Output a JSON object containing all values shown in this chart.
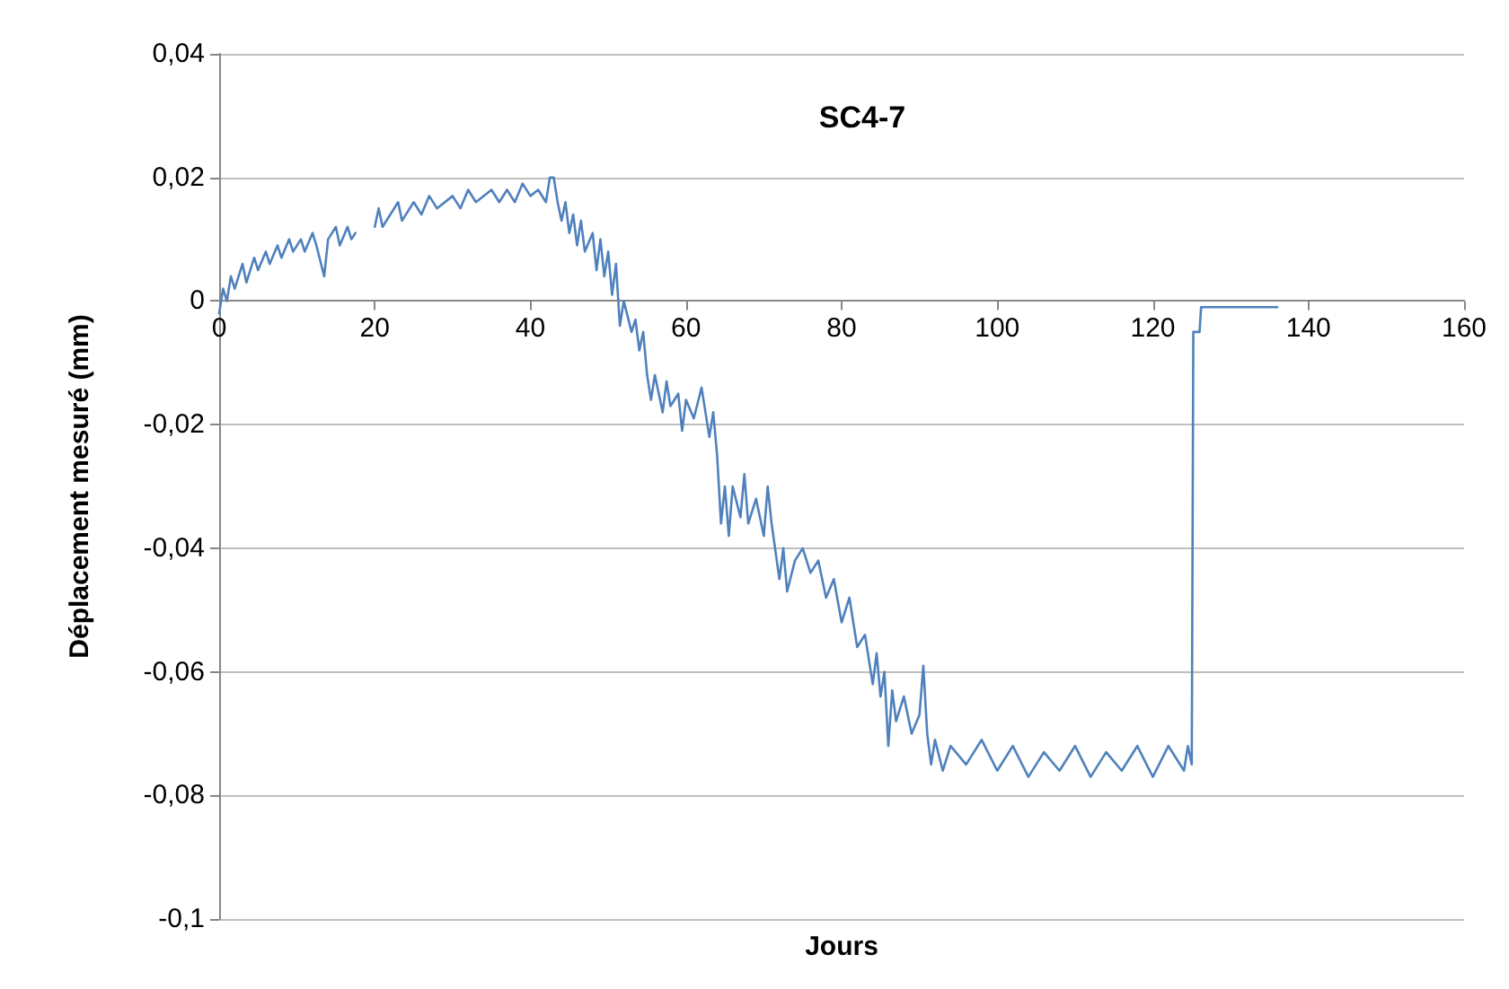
{
  "chart_data": {
    "type": "line",
    "title": "SC4-7",
    "xlabel": "Jours",
    "ylabel": "Déplacement mesuré (mm)",
    "xlim": [
      0,
      160
    ],
    "xticks": [
      0,
      20,
      40,
      60,
      80,
      100,
      120,
      140,
      160
    ],
    "ylim": [
      -0.1,
      0.04
    ],
    "yticks": [
      {
        "value": -0.1,
        "label": "-0,1"
      },
      {
        "value": -0.08,
        "label": "-0,08"
      },
      {
        "value": -0.06,
        "label": "-0,06"
      },
      {
        "value": -0.04,
        "label": "-0,04"
      },
      {
        "value": -0.02,
        "label": "-0,02"
      },
      0,
      {
        "value": 0.02,
        "label": "0,02"
      },
      {
        "value": 0.04,
        "label": "0,04"
      }
    ],
    "grid": "y",
    "marker": "none",
    "line_style": "solid",
    "series": [
      {
        "color": "#4f81bd",
        "x": [
          0,
          0.5,
          1,
          1.5,
          2,
          3,
          3.5,
          4.5,
          5,
          6,
          6.5,
          7.5,
          8,
          9,
          9.5,
          10.5,
          11,
          12,
          12.5,
          13.5,
          14,
          15,
          15.5,
          16.5,
          17,
          17.5,
          18.5,
          20,
          20.5,
          21,
          22,
          23,
          23.5,
          25,
          26,
          27,
          28,
          30,
          31,
          32,
          33,
          35,
          36,
          37,
          38,
          39,
          40,
          41,
          42,
          42.5,
          43,
          43.5,
          44,
          44.5,
          45,
          45.5,
          46,
          46.5,
          47,
          48,
          48.5,
          49,
          49.5,
          50,
          50.5,
          51,
          51.5,
          52,
          53,
          53.5,
          54,
          54.5,
          55,
          55.5,
          56,
          57,
          57.5,
          58,
          59,
          59.5,
          60,
          61,
          62,
          63,
          63.5,
          64,
          64.5,
          65,
          65.5,
          66,
          67,
          67.5,
          68,
          69,
          70,
          70.5,
          71,
          72,
          72.5,
          73,
          74,
          75,
          76,
          77,
          78,
          79,
          80,
          81,
          82,
          83,
          84,
          84.5,
          85,
          85.5,
          86,
          86.5,
          87,
          88,
          89,
          90,
          90.5,
          91,
          91.5,
          92,
          93,
          94,
          96,
          98,
          100,
          102,
          104,
          106,
          108,
          110,
          112,
          114,
          116,
          118,
          120,
          122,
          124,
          124.5,
          125,
          125.2,
          126,
          126.2,
          136
        ],
        "values": [
          -0.002,
          0.002,
          0.0,
          0.004,
          0.002,
          0.006,
          0.003,
          0.007,
          0.005,
          0.008,
          0.006,
          0.009,
          0.007,
          0.01,
          0.008,
          0.01,
          0.008,
          0.011,
          0.009,
          0.004,
          0.01,
          0.012,
          0.009,
          0.012,
          0.01,
          0.011,
          null,
          0.012,
          0.015,
          0.012,
          0.014,
          0.016,
          0.013,
          0.016,
          0.014,
          0.017,
          0.015,
          0.017,
          0.015,
          0.018,
          0.016,
          0.018,
          0.016,
          0.018,
          0.016,
          0.019,
          0.017,
          0.018,
          0.016,
          0.02,
          0.02,
          0.016,
          0.013,
          0.016,
          0.011,
          0.014,
          0.009,
          0.013,
          0.008,
          0.011,
          0.005,
          0.01,
          0.004,
          0.008,
          0.001,
          0.006,
          -0.004,
          0.0,
          -0.005,
          -0.003,
          -0.008,
          -0.005,
          -0.012,
          -0.016,
          -0.012,
          -0.018,
          -0.013,
          -0.017,
          -0.015,
          -0.021,
          -0.016,
          -0.019,
          -0.014,
          -0.022,
          -0.018,
          -0.025,
          -0.036,
          -0.03,
          -0.038,
          -0.03,
          -0.035,
          -0.028,
          -0.036,
          -0.032,
          -0.038,
          -0.03,
          -0.036,
          -0.045,
          -0.04,
          -0.047,
          -0.042,
          -0.04,
          -0.044,
          -0.042,
          -0.048,
          -0.045,
          -0.052,
          -0.048,
          -0.056,
          -0.054,
          -0.062,
          -0.057,
          -0.064,
          -0.06,
          -0.072,
          -0.063,
          -0.068,
          -0.064,
          -0.07,
          -0.067,
          -0.059,
          -0.07,
          -0.075,
          -0.071,
          -0.076,
          -0.072,
          -0.075,
          -0.071,
          -0.076,
          -0.072,
          -0.077,
          -0.073,
          -0.076,
          -0.072,
          -0.077,
          -0.073,
          -0.076,
          -0.072,
          -0.077,
          -0.072,
          -0.076,
          -0.072,
          -0.075,
          -0.005,
          -0.005,
          -0.001,
          -0.001
        ]
      }
    ]
  }
}
